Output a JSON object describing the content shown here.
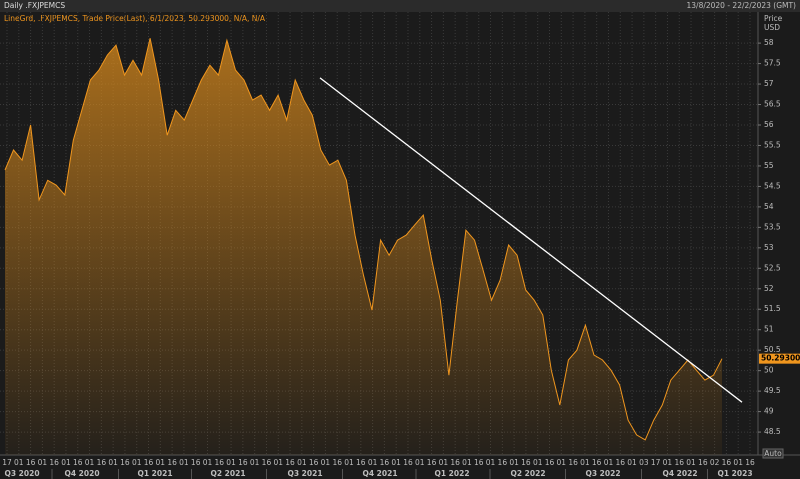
{
  "header": {
    "left": "Daily .FXJPEMCS",
    "right": "13/8/2020 - 22/2/2023 (GMT)"
  },
  "chart_data": {
    "type": "area",
    "legend_text": "LineGrd, .FXJPEMCS, Trade Price(Last), 6/1/2023, 50.293000, N/A, N/A",
    "axis_title": "Price",
    "axis_unit": "USD",
    "values": [
      54.9,
      55.39,
      55.14,
      56.0,
      54.17,
      54.65,
      54.53,
      54.29,
      55.63,
      56.36,
      57.1,
      57.34,
      57.71,
      57.95,
      57.22,
      57.58,
      57.22,
      58.12,
      57.1,
      55.75,
      56.36,
      56.12,
      56.61,
      57.1,
      57.46,
      57.22,
      58.07,
      57.34,
      57.1,
      56.61,
      56.73,
      56.36,
      56.73,
      56.12,
      57.1,
      56.61,
      56.24,
      55.39,
      55.02,
      55.14,
      54.65,
      53.31,
      52.33,
      51.48,
      53.19,
      52.82,
      53.19,
      53.31,
      53.56,
      53.8,
      52.7,
      51.72,
      49.89,
      51.72,
      53.43,
      53.19,
      52.46,
      51.72,
      52.21,
      53.07,
      52.82,
      51.97,
      51.72,
      51.36,
      50.01,
      49.16,
      50.26,
      50.5,
      51.11,
      50.38,
      50.26,
      50.01,
      49.65,
      48.79,
      48.43,
      48.31,
      48.79,
      49.16,
      49.77,
      50.01,
      50.26,
      50.01,
      49.77,
      49.89,
      50.293
    ],
    "last_label": "50.293000",
    "color": "#f0961e",
    "trendline": {
      "y": [
        57.15,
        49.23
      ],
      "color": "#ffffff"
    },
    "ylim": [
      47.94,
      58.76
    ],
    "yticks": [
      48.5,
      49,
      49.5,
      50,
      50.5,
      51,
      51.5,
      52,
      52.5,
      53,
      53.5,
      54,
      54.5,
      55,
      55.5,
      56,
      56.5,
      57,
      57.5,
      58
    ],
    "day_labels": [
      "17",
      "01",
      "16",
      "01",
      "16",
      "01",
      "16",
      "01",
      "16",
      "01",
      "16",
      "01",
      "16",
      "01",
      "16",
      "01",
      "16",
      "01",
      "16",
      "01",
      "16",
      "01",
      "16",
      "01",
      "16",
      "01",
      "16",
      "01",
      "16",
      "01",
      "16",
      "01",
      "16",
      "01",
      "16",
      "01",
      "16",
      "01",
      "16",
      "01",
      "16",
      "01",
      "16",
      "01",
      "16",
      "01",
      "16",
      "01",
      "16",
      "01",
      "16",
      "01",
      "16",
      "01",
      "03",
      "17",
      "01",
      "16",
      "01",
      "16",
      "02",
      "16",
      "01",
      "16"
    ],
    "quarters": [
      "Q3 2020",
      "Q4 2020",
      "Q1 2021",
      "Q2 2021",
      "Q3 2021",
      "Q4 2021",
      "Q1 2022",
      "Q2 2022",
      "Q3 2022",
      "Q4 2022",
      "Q1 2023"
    ],
    "button": "Auto"
  }
}
